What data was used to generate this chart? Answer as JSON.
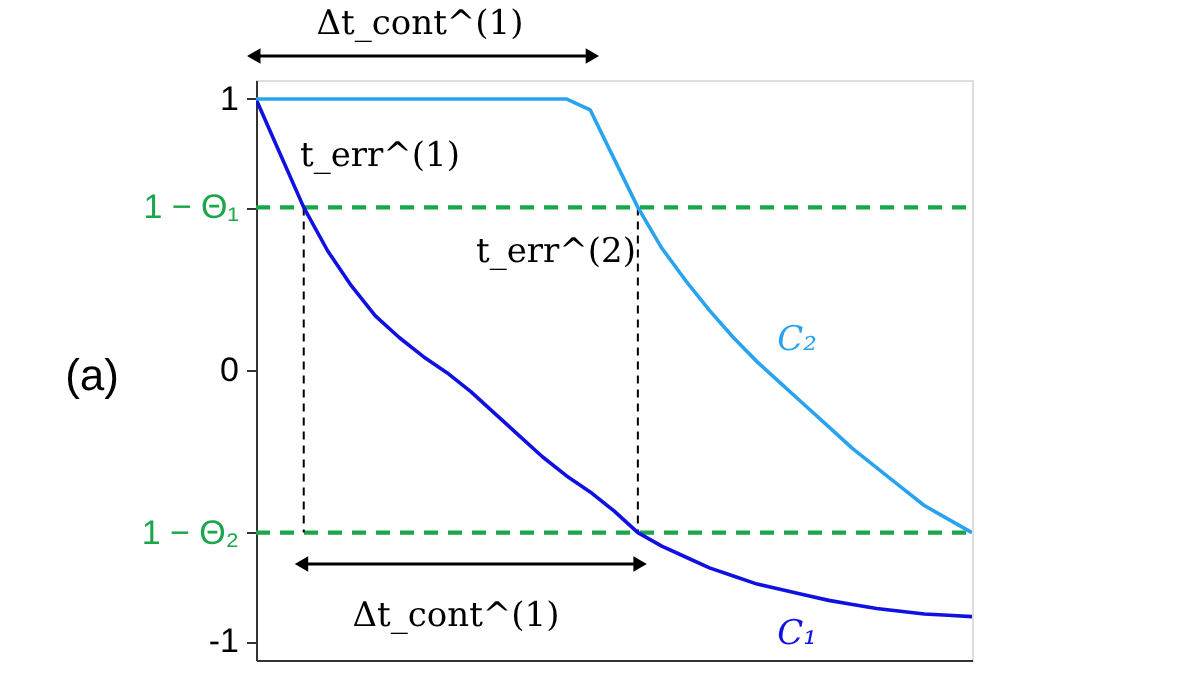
{
  "chart_data": {
    "type": "line",
    "categories": [
      null,
      null,
      null,
      null,
      null,
      null,
      null,
      null,
      null,
      null,
      null,
      null,
      null,
      null,
      null,
      null,
      null,
      null,
      null,
      null,
      null,
      null,
      null,
      null,
      null,
      null,
      null,
      null,
      null,
      null,
      null
    ],
    "series": [
      {
        "name": "C₁",
        "color": "#1010e0",
        "values": [
          1.0,
          0.8,
          0.6,
          0.44,
          0.31,
          0.2,
          0.12,
          0.05,
          -0.01,
          -0.08,
          -0.16,
          -0.24,
          -0.32,
          -0.39,
          -0.45,
          -0.52,
          -0.6,
          -0.65,
          -0.69,
          -0.73,
          -0.76,
          -0.79,
          -0.81,
          -0.83,
          -0.85,
          -0.865,
          -0.88,
          -0.89,
          -0.9,
          -0.905,
          -0.91
        ]
      },
      {
        "name": "C₂",
        "color": "#2aa3ee",
        "values": [
          1,
          1,
          1,
          1,
          1,
          1,
          1,
          1,
          1,
          1,
          1,
          1,
          1,
          1,
          0.96,
          0.78,
          0.6,
          0.45,
          0.33,
          0.22,
          0.12,
          0.03,
          -0.05,
          -0.13,
          -0.21,
          -0.29,
          -0.36,
          -0.43,
          -0.5,
          -0.55,
          -0.6
        ]
      }
    ],
    "ylim": [
      -1.07,
      1.07
    ],
    "yticks": [
      -1,
      {
        "value": -0.6,
        "label": "1 − Θ₂"
      },
      0,
      {
        "value": 0.6,
        "label": "1 − Θ₁"
      },
      1
    ],
    "tick_labels": "y",
    "grid": false,
    "legend": false,
    "line_style": "solid",
    "marker": "none",
    "ref_lines": [
      {
        "axis": "y",
        "value": 0.6,
        "color": "#1aa64a",
        "line_style": "dashed"
      },
      {
        "axis": "y",
        "value": -0.6,
        "color": "#1aa64a",
        "line_style": "dashed"
      }
    ],
    "annotations": [
      "Δt_cont^(1)",
      "Δt_cont^(1)",
      "t_err^(1)",
      "t_err^(2)",
      "(a)"
    ]
  }
}
